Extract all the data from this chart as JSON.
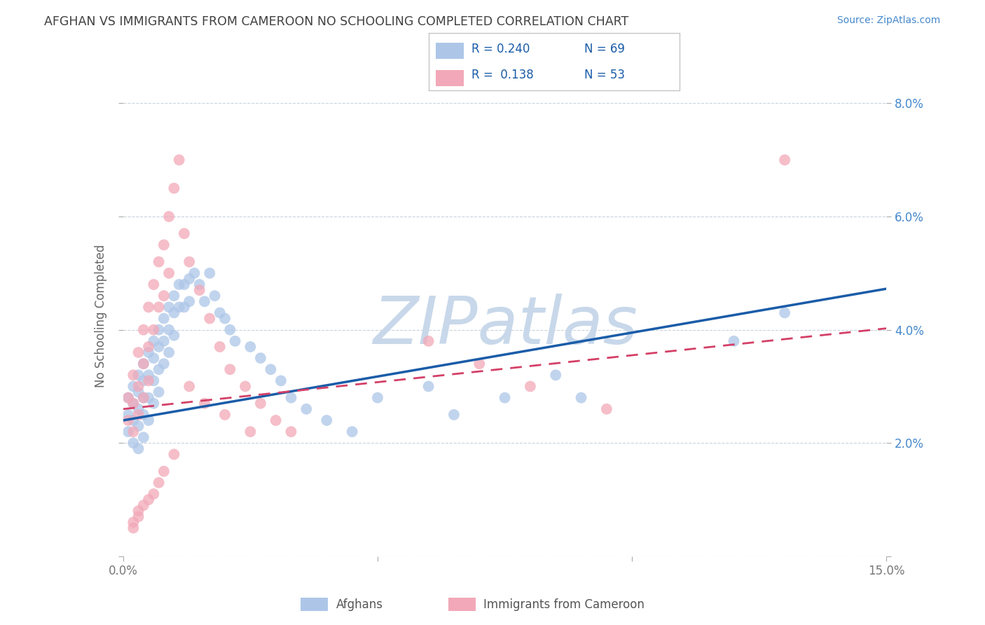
{
  "title": "AFGHAN VS IMMIGRANTS FROM CAMEROON NO SCHOOLING COMPLETED CORRELATION CHART",
  "source": "Source: ZipAtlas.com",
  "ylabel_label": "No Schooling Completed",
  "x_min": 0.0,
  "x_max": 0.15,
  "y_min": 0.0,
  "y_max": 0.085,
  "x_ticks": [
    0.0,
    0.05,
    0.1,
    0.15
  ],
  "x_tick_labels": [
    "0.0%",
    "",
    "",
    "15.0%"
  ],
  "y_ticks": [
    0.0,
    0.02,
    0.04,
    0.06,
    0.08
  ],
  "y_tick_labels_right": [
    "",
    "2.0%",
    "4.0%",
    "6.0%",
    "8.0%"
  ],
  "legend_r1": "0.240",
  "legend_n1": "69",
  "legend_r2": "0.138",
  "legend_n2": "53",
  "color_blue": "#adc6e8",
  "color_pink": "#f2a8b8",
  "line_color_blue": "#1a5ca8",
  "line_color_pink": "#d44068",
  "watermark": "ZIPatlas",
  "watermark_color": "#c8d8ea",
  "bg_color": "#ffffff",
  "grid_color": "#c8d4dc",
  "title_color": "#404040",
  "source_color": "#4488cc",
  "legend_text_color": "#1a5ca8",
  "blue_intercept": 0.024,
  "blue_slope": 0.155,
  "pink_intercept": 0.026,
  "pink_slope": 0.095,
  "afghans_x": [
    0.001,
    0.001,
    0.001,
    0.002,
    0.002,
    0.002,
    0.002,
    0.003,
    0.003,
    0.003,
    0.003,
    0.003,
    0.004,
    0.004,
    0.004,
    0.004,
    0.004,
    0.005,
    0.005,
    0.005,
    0.005,
    0.006,
    0.006,
    0.006,
    0.006,
    0.007,
    0.007,
    0.007,
    0.007,
    0.008,
    0.008,
    0.008,
    0.009,
    0.009,
    0.009,
    0.01,
    0.01,
    0.01,
    0.011,
    0.011,
    0.012,
    0.012,
    0.013,
    0.013,
    0.014,
    0.015,
    0.016,
    0.017,
    0.018,
    0.019,
    0.02,
    0.021,
    0.022,
    0.025,
    0.027,
    0.029,
    0.031,
    0.033,
    0.036,
    0.04,
    0.045,
    0.05,
    0.06,
    0.065,
    0.075,
    0.085,
    0.09,
    0.12,
    0.13
  ],
  "afghans_y": [
    0.028,
    0.025,
    0.022,
    0.03,
    0.027,
    0.024,
    0.02,
    0.032,
    0.029,
    0.026,
    0.023,
    0.019,
    0.034,
    0.031,
    0.028,
    0.025,
    0.021,
    0.036,
    0.032,
    0.028,
    0.024,
    0.038,
    0.035,
    0.031,
    0.027,
    0.04,
    0.037,
    0.033,
    0.029,
    0.042,
    0.038,
    0.034,
    0.044,
    0.04,
    0.036,
    0.046,
    0.043,
    0.039,
    0.048,
    0.044,
    0.048,
    0.044,
    0.049,
    0.045,
    0.05,
    0.048,
    0.045,
    0.05,
    0.046,
    0.043,
    0.042,
    0.04,
    0.038,
    0.037,
    0.035,
    0.033,
    0.031,
    0.028,
    0.026,
    0.024,
    0.022,
    0.028,
    0.03,
    0.025,
    0.028,
    0.032,
    0.028,
    0.038,
    0.043
  ],
  "cameroon_x": [
    0.001,
    0.001,
    0.002,
    0.002,
    0.002,
    0.003,
    0.003,
    0.003,
    0.004,
    0.004,
    0.004,
    0.005,
    0.005,
    0.005,
    0.006,
    0.006,
    0.007,
    0.007,
    0.008,
    0.008,
    0.009,
    0.009,
    0.01,
    0.011,
    0.012,
    0.013,
    0.015,
    0.017,
    0.019,
    0.021,
    0.024,
    0.027,
    0.03,
    0.033,
    0.01,
    0.008,
    0.007,
    0.006,
    0.005,
    0.004,
    0.003,
    0.003,
    0.002,
    0.002,
    0.013,
    0.016,
    0.02,
    0.025,
    0.06,
    0.07,
    0.08,
    0.095,
    0.13
  ],
  "cameroon_y": [
    0.028,
    0.024,
    0.032,
    0.027,
    0.022,
    0.036,
    0.03,
    0.025,
    0.04,
    0.034,
    0.028,
    0.044,
    0.037,
    0.031,
    0.048,
    0.04,
    0.052,
    0.044,
    0.055,
    0.046,
    0.06,
    0.05,
    0.065,
    0.07,
    0.057,
    0.052,
    0.047,
    0.042,
    0.037,
    0.033,
    0.03,
    0.027,
    0.024,
    0.022,
    0.018,
    0.015,
    0.013,
    0.011,
    0.01,
    0.009,
    0.008,
    0.007,
    0.006,
    0.005,
    0.03,
    0.027,
    0.025,
    0.022,
    0.038,
    0.034,
    0.03,
    0.026,
    0.07
  ]
}
